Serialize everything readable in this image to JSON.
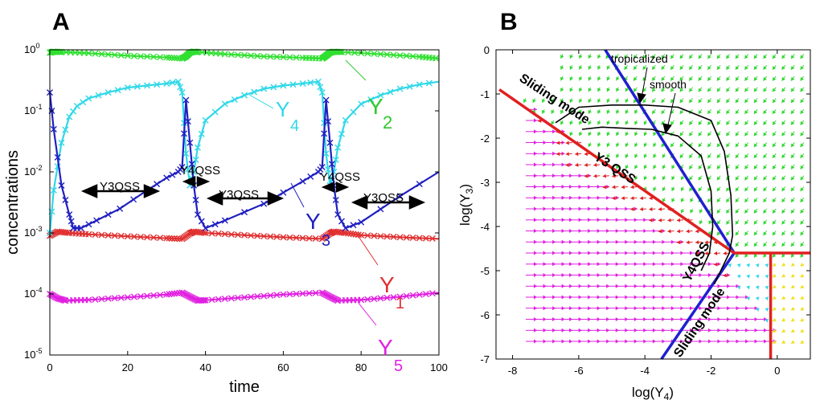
{
  "panel_a": {
    "letter": "A",
    "y_tick_labels": [
      {
        "base": "10",
        "exp": "-5"
      },
      {
        "base": "10",
        "exp": "-4"
      },
      {
        "base": "10",
        "exp": "-3"
      },
      {
        "base": "10",
        "exp": "-2"
      },
      {
        "base": "10",
        "exp": "-1"
      },
      {
        "base": "10",
        "exp": "0"
      }
    ],
    "y_label_texts": {
      "Y2": {
        "main": "Y",
        "sub": "2"
      },
      "Y4": {
        "main": "Y",
        "sub": "4"
      },
      "Y3": {
        "main": "Y",
        "sub": "3"
      },
      "Y1": {
        "main": "Y",
        "sub": "1"
      },
      "Y5": {
        "main": "Y",
        "sub": "5"
      }
    },
    "annotations": {
      "y3qss_1": "Y3QSS",
      "y4qss_1": "Y4QSS",
      "y3qss_2": "Y3QSS",
      "y4qss_2": "Y4QSS",
      "y3qss_3": "Y3QSS"
    }
  },
  "panel_b": {
    "letter": "B",
    "annotations": {
      "tropicalized": "tropicalized",
      "smooth": "smooth",
      "sliding_mode_top": "Sliding mode",
      "y3_qss": "Y3 QSS",
      "y4qss": "Y4QSS",
      "sliding_mode_bottom": "Sliding mode"
    },
    "xlabel_parts": {
      "pre": "log(Y",
      "sub": "4",
      "post": ")"
    },
    "ylabel_parts": {
      "pre": "log(Y",
      "sub": "3",
      "post": ")"
    }
  },
  "chart_data": [
    {
      "type": "line",
      "title": "A",
      "xlabel": "time",
      "ylabel": "concentrations",
      "xlim": [
        0,
        100
      ],
      "ylim": [
        1e-05,
        1
      ],
      "yscale": "log",
      "x_ticks": [
        0,
        20,
        40,
        60,
        80,
        100
      ],
      "y_ticks": [
        1e-05,
        0.0001,
        0.001,
        0.01,
        0.1,
        1
      ],
      "period": 36,
      "series": [
        {
          "name": "Y1",
          "color": "#e03030",
          "x": [
            0,
            2,
            5,
            10,
            20,
            30,
            34,
            36,
            37,
            40,
            50,
            60,
            70,
            72,
            73,
            76,
            80,
            90,
            100
          ],
          "y": [
            0.0009,
            0.00105,
            0.001,
            0.00095,
            0.00088,
            0.00082,
            0.0008,
            0.00098,
            0.00105,
            0.001,
            0.00092,
            0.00085,
            0.0008,
            0.00098,
            0.00105,
            0.001,
            0.00092,
            0.00085,
            0.0008
          ]
        },
        {
          "name": "Y5",
          "color": "#e020e0",
          "x": [
            0,
            2,
            4,
            10,
            20,
            30,
            34,
            36,
            38,
            40,
            50,
            60,
            70,
            72,
            74,
            80,
            90,
            100
          ],
          "y": [
            0.0001,
            8.5e-05,
            7.8e-05,
            8e-05,
            8.8e-05,
            9.8e-05,
            0.000105,
            9e-05,
            7.8e-05,
            7.9e-05,
            8.8e-05,
            9.8e-05,
            0.000105,
            9e-05,
            7.8e-05,
            8e-05,
            9e-05,
            0.000105
          ]
        },
        {
          "name": "Y2",
          "color": "#30e030",
          "x": [
            0,
            1,
            3,
            10,
            20,
            30,
            34,
            35,
            36,
            37,
            38,
            45,
            55,
            65,
            70,
            71,
            72,
            73,
            75,
            85,
            95,
            100
          ],
          "y": [
            0.9,
            0.93,
            0.92,
            0.88,
            0.8,
            0.75,
            0.72,
            0.78,
            0.9,
            0.93,
            0.92,
            0.85,
            0.78,
            0.74,
            0.72,
            0.8,
            0.9,
            0.93,
            0.92,
            0.85,
            0.77,
            0.72
          ]
        },
        {
          "name": "Y4",
          "color": "#30d8e8",
          "x": [
            0,
            1,
            3,
            5,
            7,
            10,
            15,
            20,
            25,
            30,
            33,
            34,
            35,
            36,
            37,
            38,
            40,
            45,
            50,
            55,
            60,
            65,
            69,
            70,
            71,
            72,
            73,
            74,
            76,
            80,
            85,
            90,
            95,
            100
          ],
          "y": [
            0.001,
            0.005,
            0.03,
            0.08,
            0.12,
            0.16,
            0.2,
            0.24,
            0.26,
            0.28,
            0.3,
            0.2,
            0.02,
            0.006,
            0.01,
            0.025,
            0.07,
            0.13,
            0.18,
            0.23,
            0.26,
            0.28,
            0.3,
            0.2,
            0.02,
            0.006,
            0.01,
            0.025,
            0.07,
            0.13,
            0.18,
            0.23,
            0.27,
            0.3
          ]
        },
        {
          "name": "Y3",
          "color": "#2020c0",
          "x": [
            0,
            1,
            3,
            5,
            6,
            8,
            12,
            18,
            25,
            30,
            33,
            34,
            35,
            36,
            37,
            38,
            40,
            45,
            55,
            65,
            69,
            70,
            71,
            72,
            73,
            74,
            76,
            80,
            90,
            100
          ],
          "y": [
            0.2,
            0.05,
            0.006,
            0.002,
            0.0012,
            0.0012,
            0.0016,
            0.0025,
            0.005,
            0.008,
            0.01,
            0.012,
            0.15,
            0.03,
            0.006,
            0.002,
            0.0012,
            0.0016,
            0.003,
            0.007,
            0.01,
            0.012,
            0.15,
            0.03,
            0.006,
            0.002,
            0.0012,
            0.0015,
            0.004,
            0.01
          ]
        }
      ]
    },
    {
      "type": "scatter",
      "title": "B",
      "xlabel": "log(Y4)",
      "ylabel": "log(Y3)",
      "xlim": [
        -8.5,
        1
      ],
      "ylim": [
        -7,
        0
      ],
      "x_ticks": [
        -8,
        -6,
        -4,
        -2,
        0
      ],
      "y_ticks": [
        0,
        -1,
        -2,
        -3,
        -4,
        -5,
        -6,
        -7
      ],
      "series": [
        {
          "name": "blue boundary",
          "color": "#2020d0",
          "x": [
            -5.2,
            -1.3,
            -3.5
          ],
          "y": [
            0,
            -4.6,
            -7
          ]
        },
        {
          "name": "red boundary",
          "color": "#e02020",
          "x": [
            -8.4,
            -1.3,
            -0.2,
            1
          ],
          "y": [
            -0.9,
            -4.6,
            -4.6,
            -4.6
          ]
        },
        {
          "name": "red vertical",
          "color": "#e02020",
          "x": [
            -0.2,
            -0.2
          ],
          "y": [
            -4.6,
            -7
          ]
        },
        {
          "name": "trajectory tropicalized",
          "color": "#000000",
          "x": [
            -6.7,
            -6.0,
            -5.0,
            -4.0,
            -3.0,
            -2.0,
            -1.6,
            -1.4,
            -1.35,
            -1.45,
            -1.9
          ],
          "y": [
            -1.65,
            -1.3,
            -1.25,
            -1.25,
            -1.3,
            -1.6,
            -2.3,
            -3.3,
            -4.2,
            -4.6,
            -5.3
          ]
        },
        {
          "name": "trajectory smooth",
          "color": "#000000",
          "x": [
            -5.9,
            -5.3,
            -4.5,
            -3.8,
            -3.0,
            -2.3,
            -2.0,
            -1.95,
            -2.05,
            -2.3
          ],
          "y": [
            -1.8,
            -1.75,
            -1.78,
            -1.8,
            -1.95,
            -2.4,
            -3.2,
            -4.0,
            -4.6,
            -5.0
          ]
        }
      ]
    }
  ]
}
